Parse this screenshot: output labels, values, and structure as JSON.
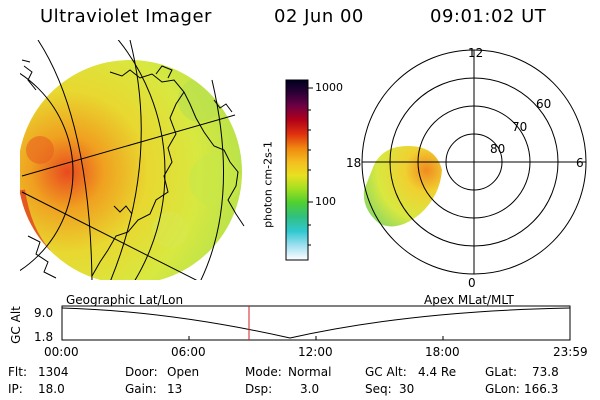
{
  "header": {
    "title": "Ultraviolet Imager",
    "date": "02 Jun 00",
    "time": "09:01:02 UT"
  },
  "colorbar": {
    "label": "photon cm-2s-1",
    "ticks": [
      "1000",
      "100"
    ],
    "colors": [
      "#000020",
      "#2a0035",
      "#5a004a",
      "#8a0030",
      "#c40010",
      "#e24010",
      "#f08a10",
      "#f5b820",
      "#e8e020",
      "#b0e020",
      "#70d020",
      "#30c060",
      "#20c8b0",
      "#40d0e0",
      "#b0e8f0",
      "#ffffff"
    ]
  },
  "polar": {
    "mlt_labels": [
      "12",
      "18",
      "6",
      "0"
    ],
    "lat_labels": [
      "60",
      "70",
      "80"
    ]
  },
  "altitude": {
    "left_label": "Geographic Lat/Lon",
    "right_label": "Apex MLat/MLT",
    "axis_label": "GC Alt",
    "y_labels": [
      "9.0",
      "1.8"
    ],
    "x_ticks": [
      "00:00",
      "06:00",
      "12:00",
      "18:00",
      "23:59"
    ]
  },
  "info": {
    "row1": [
      "Flt:",
      "1304",
      "Door:",
      "Open",
      "Mode:",
      "Normal",
      "GC Alt:",
      "4.4 Re",
      "GLat:",
      "73.8"
    ],
    "row2": [
      "IP:",
      "18.0",
      "Gain:",
      "13",
      "Dsp:",
      "3.0",
      "Seq:",
      "30",
      "GLon:",
      "166.3"
    ]
  }
}
